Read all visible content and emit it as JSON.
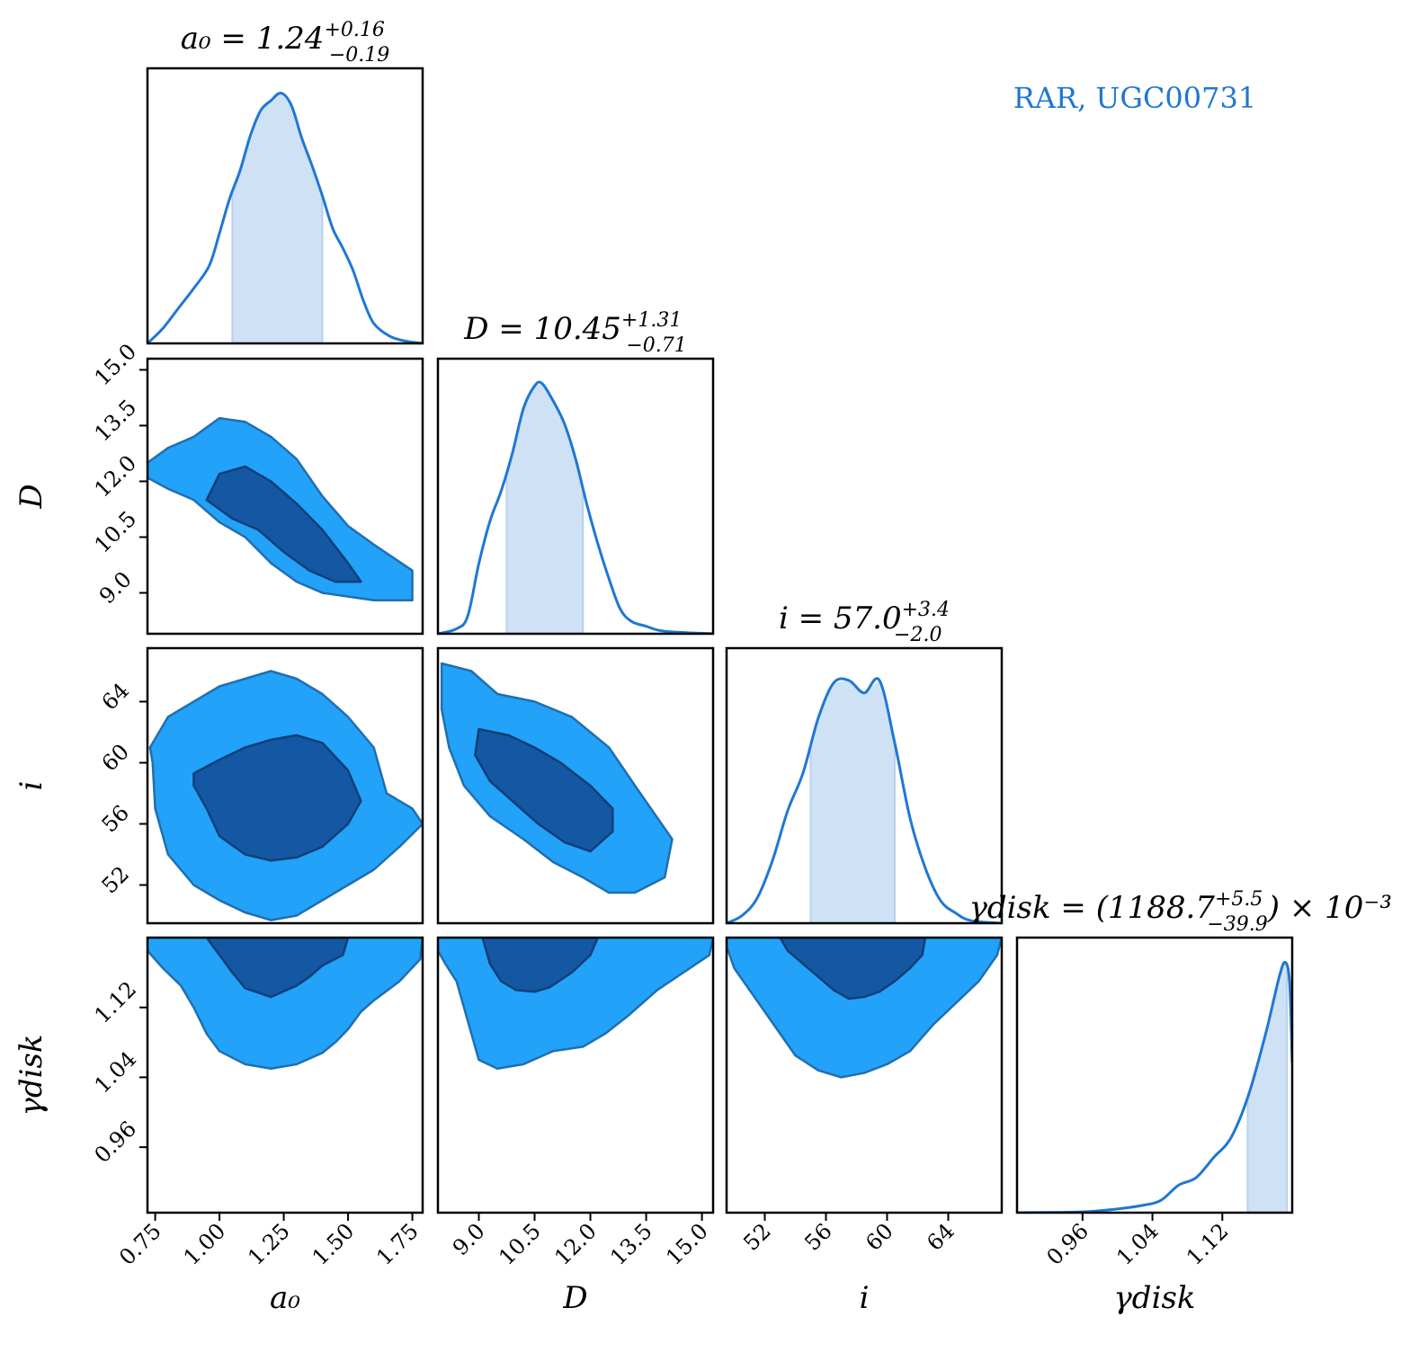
{
  "chart_data": {
    "type": "corner",
    "annotation": "RAR, UGC00731",
    "colors": {
      "line": "#1f77d4",
      "band": "#cfe2f5",
      "contour_inner": "#1458a3",
      "contour_outer": "#22a2f9",
      "contour_edge": "#1f6fb0"
    },
    "parameters": [
      {
        "key": "a0",
        "label": "a₀",
        "title": {
          "lhs": "a₀ = 1.24",
          "sup": "+0.16",
          "sub": "−0.19",
          "suffix": ""
        },
        "range": [
          0.72,
          1.79
        ],
        "ticks": [
          0.75,
          1.0,
          1.25,
          1.5,
          1.75
        ],
        "tick_labels": [
          "0.75",
          "1.00",
          "1.25",
          "1.50",
          "1.75"
        ],
        "median": 1.24,
        "band": [
          1.05,
          1.4
        ],
        "density": [
          [
            0.72,
            0.0
          ],
          [
            0.78,
            0.06
          ],
          [
            0.84,
            0.14
          ],
          [
            0.9,
            0.22
          ],
          [
            0.96,
            0.31
          ],
          [
            1.0,
            0.44
          ],
          [
            1.04,
            0.58
          ],
          [
            1.08,
            0.69
          ],
          [
            1.12,
            0.83
          ],
          [
            1.16,
            0.93
          ],
          [
            1.2,
            0.97
          ],
          [
            1.24,
            1.0
          ],
          [
            1.28,
            0.95
          ],
          [
            1.32,
            0.82
          ],
          [
            1.36,
            0.71
          ],
          [
            1.4,
            0.59
          ],
          [
            1.44,
            0.46
          ],
          [
            1.48,
            0.38
          ],
          [
            1.52,
            0.29
          ],
          [
            1.56,
            0.17
          ],
          [
            1.6,
            0.08
          ],
          [
            1.66,
            0.03
          ],
          [
            1.72,
            0.01
          ],
          [
            1.79,
            0.0
          ]
        ]
      },
      {
        "key": "D",
        "label": "D",
        "title": {
          "lhs": "D = 10.45",
          "sup": "+1.31",
          "sub": "−0.71",
          "suffix": ""
        },
        "range": [
          7.9,
          15.3
        ],
        "ticks": [
          9.0,
          10.5,
          12.0,
          13.5,
          15.0
        ],
        "tick_labels": [
          "9.0",
          "10.5",
          "12.0",
          "13.5",
          "15.0"
        ],
        "median": 10.45,
        "band": [
          9.75,
          11.8
        ],
        "density": [
          [
            7.9,
            0.0
          ],
          [
            8.4,
            0.02
          ],
          [
            8.7,
            0.07
          ],
          [
            9.0,
            0.28
          ],
          [
            9.3,
            0.45
          ],
          [
            9.6,
            0.57
          ],
          [
            9.9,
            0.72
          ],
          [
            10.2,
            0.9
          ],
          [
            10.5,
            0.99
          ],
          [
            10.7,
            1.0
          ],
          [
            11.0,
            0.93
          ],
          [
            11.3,
            0.84
          ],
          [
            11.6,
            0.7
          ],
          [
            11.9,
            0.52
          ],
          [
            12.2,
            0.36
          ],
          [
            12.5,
            0.22
          ],
          [
            12.8,
            0.1
          ],
          [
            13.1,
            0.05
          ],
          [
            13.5,
            0.03
          ],
          [
            14.0,
            0.01
          ],
          [
            15.3,
            0.0
          ]
        ]
      },
      {
        "key": "i",
        "label": "i",
        "title": {
          "lhs": "i = 57.0",
          "sup": "+3.4",
          "sub": "−2.0",
          "suffix": ""
        },
        "range": [
          49.5,
          67.5
        ],
        "ticks": [
          52,
          56,
          60,
          64
        ],
        "tick_labels": [
          "52",
          "56",
          "60",
          "64"
        ],
        "median": 57.0,
        "band": [
          55.0,
          60.5
        ],
        "density": [
          [
            49.5,
            0.0
          ],
          [
            50.5,
            0.03
          ],
          [
            51.5,
            0.1
          ],
          [
            52.5,
            0.25
          ],
          [
            53.5,
            0.45
          ],
          [
            54.5,
            0.6
          ],
          [
            55.5,
            0.82
          ],
          [
            56.5,
            0.96
          ],
          [
            57.5,
            0.97
          ],
          [
            58.5,
            0.92
          ],
          [
            59.5,
            0.97
          ],
          [
            60.5,
            0.72
          ],
          [
            61.5,
            0.42
          ],
          [
            62.5,
            0.22
          ],
          [
            63.5,
            0.09
          ],
          [
            64.5,
            0.04
          ],
          [
            65.5,
            0.01
          ],
          [
            67.5,
            0.0
          ]
        ]
      },
      {
        "key": "gamma_disk",
        "label": "γdisk",
        "title": {
          "lhs": "γdisk = (1188.7",
          "sup": "+5.5",
          "sub": "−39.9",
          "suffix": ") × 10⁻³"
        },
        "range": [
          0.885,
          1.2
        ],
        "ticks": [
          0.96,
          1.04,
          1.12
        ],
        "tick_labels": [
          "0.96",
          "1.04",
          "1.12"
        ],
        "median": 1.1887,
        "band": [
          1.149,
          1.194
        ],
        "density": [
          [
            0.885,
            0.0
          ],
          [
            0.96,
            0.003
          ],
          [
            1.0,
            0.015
          ],
          [
            1.03,
            0.03
          ],
          [
            1.05,
            0.05
          ],
          [
            1.07,
            0.11
          ],
          [
            1.09,
            0.14
          ],
          [
            1.11,
            0.22
          ],
          [
            1.13,
            0.3
          ],
          [
            1.15,
            0.47
          ],
          [
            1.17,
            0.72
          ],
          [
            1.185,
            0.94
          ],
          [
            1.192,
            1.0
          ],
          [
            1.197,
            0.92
          ],
          [
            1.2,
            0.6
          ]
        ]
      }
    ],
    "pairs": [
      {
        "row": "D",
        "col": "a0",
        "outer": [
          [
            0.72,
            12.5
          ],
          [
            0.8,
            12.9
          ],
          [
            0.9,
            13.2
          ],
          [
            1.0,
            13.7
          ],
          [
            1.1,
            13.6
          ],
          [
            1.2,
            13.2
          ],
          [
            1.3,
            12.6
          ],
          [
            1.4,
            11.6
          ],
          [
            1.5,
            10.8
          ],
          [
            1.6,
            10.3
          ],
          [
            1.75,
            9.6
          ],
          [
            1.75,
            8.8
          ],
          [
            1.6,
            8.8
          ],
          [
            1.5,
            8.9
          ],
          [
            1.4,
            9.0
          ],
          [
            1.3,
            9.3
          ],
          [
            1.2,
            9.8
          ],
          [
            1.1,
            10.5
          ],
          [
            1.0,
            10.9
          ],
          [
            0.9,
            11.5
          ],
          [
            0.8,
            11.8
          ],
          [
            0.72,
            12.1
          ]
        ],
        "inner": [
          [
            0.95,
            11.5
          ],
          [
            1.0,
            12.2
          ],
          [
            1.1,
            12.4
          ],
          [
            1.2,
            12.0
          ],
          [
            1.3,
            11.4
          ],
          [
            1.4,
            10.7
          ],
          [
            1.5,
            9.8
          ],
          [
            1.55,
            9.3
          ],
          [
            1.45,
            9.3
          ],
          [
            1.35,
            9.6
          ],
          [
            1.25,
            10.1
          ],
          [
            1.15,
            10.7
          ],
          [
            1.05,
            11.0
          ]
        ]
      },
      {
        "row": "i",
        "col": "a0",
        "outer": [
          [
            0.73,
            61.0
          ],
          [
            0.8,
            63.0
          ],
          [
            0.9,
            64.0
          ],
          [
            1.0,
            65.0
          ],
          [
            1.1,
            65.5
          ],
          [
            1.2,
            66.0
          ],
          [
            1.3,
            65.5
          ],
          [
            1.4,
            64.5
          ],
          [
            1.5,
            63.0
          ],
          [
            1.6,
            61.0
          ],
          [
            1.65,
            58.0
          ],
          [
            1.75,
            57.0
          ],
          [
            1.79,
            56.0
          ],
          [
            1.7,
            54.5
          ],
          [
            1.6,
            53.0
          ],
          [
            1.5,
            52.0
          ],
          [
            1.4,
            51.0
          ],
          [
            1.3,
            50.0
          ],
          [
            1.2,
            49.7
          ],
          [
            1.1,
            50.2
          ],
          [
            1.0,
            51.0
          ],
          [
            0.9,
            52.0
          ],
          [
            0.8,
            54.0
          ],
          [
            0.75,
            57.0
          ],
          [
            0.74,
            60.0
          ]
        ],
        "inner": [
          [
            0.9,
            59.3
          ],
          [
            1.0,
            60.2
          ],
          [
            1.1,
            61.0
          ],
          [
            1.2,
            61.5
          ],
          [
            1.3,
            61.8
          ],
          [
            1.4,
            61.3
          ],
          [
            1.5,
            59.5
          ],
          [
            1.55,
            57.5
          ],
          [
            1.5,
            56.0
          ],
          [
            1.4,
            54.5
          ],
          [
            1.3,
            53.8
          ],
          [
            1.2,
            53.6
          ],
          [
            1.1,
            54.0
          ],
          [
            1.0,
            55.2
          ],
          [
            0.95,
            57.0
          ],
          [
            0.9,
            58.5
          ]
        ]
      },
      {
        "row": "i",
        "col": "D",
        "outer": [
          [
            8.0,
            66.5
          ],
          [
            8.8,
            66.0
          ],
          [
            9.5,
            64.5
          ],
          [
            10.5,
            64.0
          ],
          [
            11.5,
            63.0
          ],
          [
            12.5,
            61.0
          ],
          [
            13.2,
            58.5
          ],
          [
            14.2,
            55.0
          ],
          [
            14.0,
            52.5
          ],
          [
            13.2,
            51.5
          ],
          [
            12.5,
            51.5
          ],
          [
            11.8,
            52.5
          ],
          [
            11.0,
            53.5
          ],
          [
            10.2,
            55.0
          ],
          [
            9.3,
            56.5
          ],
          [
            8.6,
            58.5
          ],
          [
            8.2,
            61.0
          ],
          [
            8.0,
            63.5
          ]
        ],
        "inner": [
          [
            9.0,
            62.2
          ],
          [
            9.8,
            61.8
          ],
          [
            10.5,
            61.0
          ],
          [
            11.2,
            60.0
          ],
          [
            12.0,
            58.5
          ],
          [
            12.6,
            57.0
          ],
          [
            12.6,
            55.5
          ],
          [
            12.0,
            54.2
          ],
          [
            11.3,
            54.8
          ],
          [
            10.6,
            56.0
          ],
          [
            9.9,
            57.5
          ],
          [
            9.3,
            58.8
          ],
          [
            8.9,
            60.5
          ]
        ]
      },
      {
        "row": "gamma_disk",
        "col": "a0",
        "outer": [
          [
            0.72,
            1.185
          ],
          [
            0.72,
            1.2
          ],
          [
            1.79,
            1.2
          ],
          [
            1.78,
            1.175
          ],
          [
            1.7,
            1.15
          ],
          [
            1.6,
            1.128
          ],
          [
            1.55,
            1.115
          ],
          [
            1.5,
            1.095
          ],
          [
            1.45,
            1.08
          ],
          [
            1.4,
            1.068
          ],
          [
            1.3,
            1.055
          ],
          [
            1.2,
            1.05
          ],
          [
            1.1,
            1.055
          ],
          [
            1.0,
            1.07
          ],
          [
            0.95,
            1.09
          ],
          [
            0.9,
            1.12
          ],
          [
            0.85,
            1.145
          ],
          [
            0.78,
            1.165
          ]
        ],
        "inner": [
          [
            0.95,
            1.2
          ],
          [
            1.5,
            1.2
          ],
          [
            1.48,
            1.18
          ],
          [
            1.4,
            1.168
          ],
          [
            1.35,
            1.155
          ],
          [
            1.3,
            1.145
          ],
          [
            1.2,
            1.132
          ],
          [
            1.1,
            1.142
          ],
          [
            1.05,
            1.16
          ],
          [
            1.0,
            1.18
          ]
        ]
      },
      {
        "row": "gamma_disk",
        "col": "D",
        "outer": [
          [
            7.9,
            1.185
          ],
          [
            7.9,
            1.2
          ],
          [
            15.3,
            1.2
          ],
          [
            15.2,
            1.18
          ],
          [
            14.5,
            1.16
          ],
          [
            13.8,
            1.14
          ],
          [
            13.0,
            1.11
          ],
          [
            12.4,
            1.09
          ],
          [
            11.8,
            1.075
          ],
          [
            11.0,
            1.07
          ],
          [
            10.2,
            1.055
          ],
          [
            9.5,
            1.05
          ],
          [
            9.0,
            1.06
          ],
          [
            8.8,
            1.09
          ],
          [
            8.6,
            1.12
          ],
          [
            8.4,
            1.15
          ],
          [
            8.1,
            1.17
          ]
        ],
        "inner": [
          [
            9.1,
            1.2
          ],
          [
            12.2,
            1.2
          ],
          [
            12.0,
            1.18
          ],
          [
            11.5,
            1.16
          ],
          [
            10.9,
            1.143
          ],
          [
            10.5,
            1.138
          ],
          [
            10.0,
            1.14
          ],
          [
            9.6,
            1.15
          ],
          [
            9.3,
            1.17
          ]
        ]
      },
      {
        "row": "gamma_disk",
        "col": "i",
        "outer": [
          [
            49.5,
            1.19
          ],
          [
            49.5,
            1.2
          ],
          [
            67.5,
            1.2
          ],
          [
            67.2,
            1.18
          ],
          [
            66.0,
            1.15
          ],
          [
            64.5,
            1.125
          ],
          [
            63.0,
            1.1
          ],
          [
            61.5,
            1.07
          ],
          [
            60.0,
            1.055
          ],
          [
            58.5,
            1.045
          ],
          [
            57.0,
            1.04
          ],
          [
            55.5,
            1.048
          ],
          [
            54.0,
            1.065
          ],
          [
            53.0,
            1.09
          ],
          [
            52.0,
            1.115
          ],
          [
            51.0,
            1.14
          ],
          [
            50.0,
            1.165
          ]
        ],
        "inner": [
          [
            53.0,
            1.2
          ],
          [
            62.5,
            1.2
          ],
          [
            62.3,
            1.18
          ],
          [
            61.5,
            1.165
          ],
          [
            60.5,
            1.15
          ],
          [
            59.5,
            1.138
          ],
          [
            58.5,
            1.132
          ],
          [
            57.5,
            1.13
          ],
          [
            56.5,
            1.14
          ],
          [
            55.5,
            1.155
          ],
          [
            54.5,
            1.17
          ],
          [
            53.5,
            1.185
          ]
        ]
      }
    ]
  }
}
